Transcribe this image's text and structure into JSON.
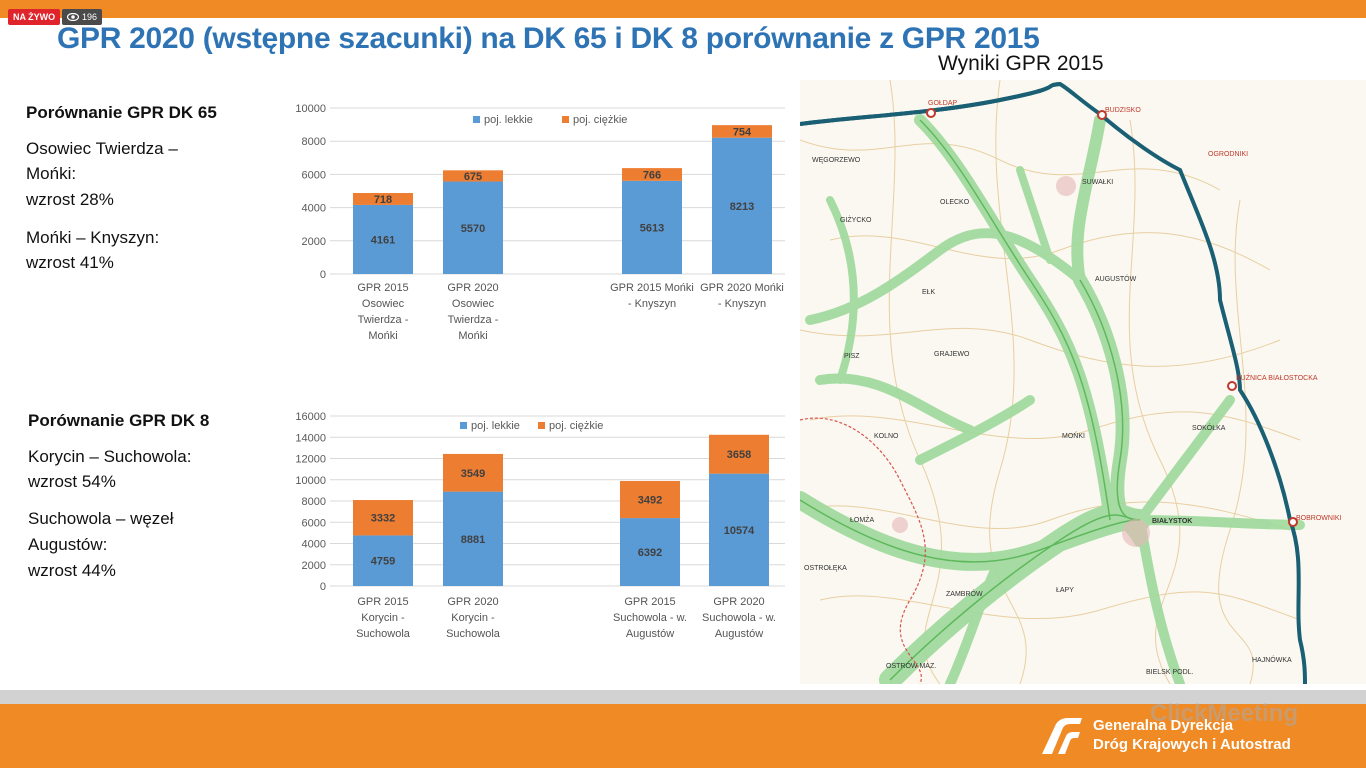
{
  "overlay": {
    "live_badge": "NA ŻYWO",
    "viewer_count": "196"
  },
  "slide": {
    "title": "GPR 2020 (wstępne szacunki) na DK 65 i DK 8 porównanie z GPR 2015",
    "dk65": {
      "heading": "Porównanie GPR DK 65",
      "stats": [
        "Osowiec Twierdza –",
        "Mońki:",
        "wzrost 28%",
        "Mońki – Knyszyn:",
        "wzrost 41%"
      ]
    },
    "dk8": {
      "heading": "Porównanie GPR DK 8",
      "stats": [
        "Korycin – Suchowola:",
        "wzrost 54%",
        "Suchowola – węzeł",
        "Augustów:",
        "wzrost 44%"
      ]
    }
  },
  "chart_data": [
    {
      "type": "bar",
      "stacked": true,
      "categories": [
        "GPR 2015 Osowiec Twierdza - Mońki",
        "GPR 2020 Osowiec Twierdza - Mońki",
        "GPR 2015 Mońki - Knyszyn",
        "GPR 2020 Mońki - Knyszyn"
      ],
      "category_lines": [
        [
          "GPR 2015",
          "Osowiec",
          "Twierdza -",
          "Mońki"
        ],
        [
          "GPR 2020",
          "Osowiec",
          "Twierdza -",
          "Mońki"
        ],
        [
          "GPR 2015 Mońki",
          "- Knyszyn"
        ],
        [
          "GPR 2020 Mońki",
          "- Knyszyn"
        ]
      ],
      "series": [
        {
          "name": "poj. lekkie",
          "color": "#5b9bd5",
          "values": [
            4161,
            5570,
            5613,
            8213
          ]
        },
        {
          "name": "poj. ciężkie",
          "color": "#ed7d31",
          "values": [
            718,
            675,
            766,
            754
          ]
        }
      ],
      "ylim": [
        0,
        10000
      ],
      "yticks": [
        "0",
        "2000",
        "4000",
        "6000",
        "8000",
        "10000"
      ],
      "grid": true,
      "legend": "top"
    },
    {
      "type": "bar",
      "stacked": true,
      "categories": [
        "GPR 2015 Korycin - Suchowola",
        "GPR 2020 Korycin - Suchowola",
        "GPR 2015 Suchowola - w. Augustów",
        "GPR 2020 Suchowola - w. Augustów"
      ],
      "category_lines": [
        [
          "GPR 2015",
          "Korycin -",
          "Suchowola"
        ],
        [
          "GPR 2020",
          "Korycin -",
          "Suchowola"
        ],
        [
          "GPR 2015",
          "Suchowola - w.",
          "Augustów"
        ],
        [
          "GPR 2020",
          "Suchowola - w.",
          "Augustów"
        ]
      ],
      "series": [
        {
          "name": "poj. lekkie",
          "color": "#5b9bd5",
          "values": [
            4759,
            8881,
            6392,
            10574
          ]
        },
        {
          "name": "poj. ciężkie",
          "color": "#ed7d31",
          "values": [
            3332,
            3549,
            3492,
            3658
          ]
        }
      ],
      "ylim": [
        0,
        16000
      ],
      "yticks": [
        "0",
        "2000",
        "4000",
        "6000",
        "8000",
        "10000",
        "12000",
        "14000",
        "16000"
      ],
      "grid": true,
      "legend": "top"
    }
  ],
  "map": {
    "title": "Wyniki GPR 2015",
    "places": [
      "GOŁDAP",
      "BUDZISKO",
      "OGRODNIKI",
      "SUWAŁKI",
      "WĘGORZEWO",
      "OLECKO",
      "GIŻYCKO",
      "EŁK",
      "AUGUSTÓW",
      "GRAJEWO",
      "KUŹNICA BIAŁOSTOCKA",
      "SOKÓŁKA",
      "PISZ",
      "KOLNO",
      "MOŃKI",
      "ŁOMŻA",
      "BIAŁYSTOK",
      "BOBROWNIKI",
      "OSTROŁĘKA",
      "ZAMBRÓW",
      "ŁAPY",
      "OSTRÓW MAZ.",
      "BIELSK PODL.",
      "HAJNÓWKA"
    ]
  },
  "footer": {
    "org_line1": "Generalna Dyrekcja",
    "org_line2": "Dróg Krajowych i Autostrad",
    "watermark": "ClickMeeting"
  }
}
